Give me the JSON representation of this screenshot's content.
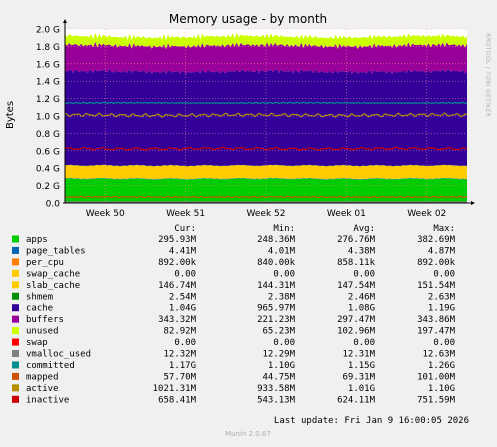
{
  "chart_data": {
    "type": "area",
    "title": "Memory usage - by month",
    "ylabel": "Bytes",
    "watermark": "RRDTOOL / TOBI OETIKER",
    "ylim": [
      0,
      2000000000
    ],
    "y_ticks": [
      {
        "value": 0,
        "label": "0.0"
      },
      {
        "value": 200000000,
        "label": "0.2 G"
      },
      {
        "value": 400000000,
        "label": "0.4 G"
      },
      {
        "value": 600000000,
        "label": "0.6 G"
      },
      {
        "value": 800000000,
        "label": "0.8 G"
      },
      {
        "value": 1000000000,
        "label": "1.0 G"
      },
      {
        "value": 1200000000,
        "label": "1.2 G"
      },
      {
        "value": 1400000000,
        "label": "1.4 G"
      },
      {
        "value": 1600000000,
        "label": "1.6 G"
      },
      {
        "value": 1800000000,
        "label": "1.8 G"
      },
      {
        "value": 2000000000,
        "label": "2.0 G"
      }
    ],
    "x_ticks": [
      "Week 50",
      "Week 51",
      "Week 52",
      "Week 01",
      "Week 02"
    ],
    "columns": [
      "Cur:",
      "Min:",
      "Avg:",
      "Max:"
    ],
    "stack_order": [
      "apps",
      "page_tables",
      "per_cpu",
      "swap_cache",
      "slab_cache",
      "shmem",
      "cache",
      "buffers",
      "unused",
      "swap"
    ],
    "line_order": [
      "vmalloc_used",
      "committed",
      "mapped",
      "active",
      "inactive"
    ],
    "series": [
      {
        "name": "apps",
        "color": "#00cc00",
        "mean": 276760000,
        "amplitude": 10000000,
        "cur": "295.93M",
        "min": "248.36M",
        "avg": "276.76M",
        "max": "382.69M"
      },
      {
        "name": "page_tables",
        "color": "#0066b3",
        "mean": 4380000,
        "amplitude": 100000,
        "cur": "4.41M",
        "min": "4.01M",
        "avg": "4.38M",
        "max": "4.87M"
      },
      {
        "name": "per_cpu",
        "color": "#ff8000",
        "mean": 858110,
        "amplitude": 10000,
        "cur": "892.00k",
        "min": "840.00k",
        "avg": "858.11k",
        "max": "892.00k"
      },
      {
        "name": "swap_cache",
        "color": "#ffcc00",
        "mean": 0,
        "amplitude": 0,
        "cur": "0.00",
        "min": "0.00",
        "avg": "0.00",
        "max": "0.00"
      },
      {
        "name": "slab_cache",
        "color": "#ffcc00",
        "mean": 147540000,
        "amplitude": 2000000,
        "cur": "146.74M",
        "min": "144.31M",
        "avg": "147.54M",
        "max": "151.54M"
      },
      {
        "name": "shmem",
        "color": "#008f00",
        "mean": 2460000,
        "amplitude": 50000,
        "cur": "2.54M",
        "min": "2.38M",
        "avg": "2.46M",
        "max": "2.63M"
      },
      {
        "name": "cache",
        "color": "#330099",
        "mean": 1080000000,
        "amplitude": 30000000,
        "cur": "1.04G",
        "min": "965.97M",
        "avg": "1.08G",
        "max": "1.19G"
      },
      {
        "name": "buffers",
        "color": "#990099",
        "mean": 297470000,
        "amplitude": 30000000,
        "cur": "343.32M",
        "min": "221.23M",
        "avg": "297.47M",
        "max": "343.86M"
      },
      {
        "name": "unused",
        "color": "#ccff00",
        "mean": 102960000,
        "amplitude": 25000000,
        "cur": "82.92M",
        "min": "65.23M",
        "avg": "102.96M",
        "max": "197.47M"
      },
      {
        "name": "swap",
        "color": "#ff0000",
        "mean": 0,
        "amplitude": 0,
        "cur": "0.00",
        "min": "0.00",
        "avg": "0.00",
        "max": "0.00"
      },
      {
        "name": "vmalloc_used",
        "color": "#808080",
        "mean": 12310000,
        "amplitude": 100000,
        "cur": "12.32M",
        "min": "12.29M",
        "avg": "12.31M",
        "max": "12.63M"
      },
      {
        "name": "committed",
        "color": "#008f8f",
        "mean": 1150000000,
        "amplitude": 8000000,
        "cur": "1.17G",
        "min": "1.10G",
        "avg": "1.15G",
        "max": "1.26G"
      },
      {
        "name": "mapped",
        "color": "#cc5200",
        "mean": 69310000,
        "amplitude": 8000000,
        "cur": "57.70M",
        "min": "44.75M",
        "avg": "69.31M",
        "max": "101.00M"
      },
      {
        "name": "active",
        "color": "#b38f00",
        "mean": 1010000000,
        "amplitude": 25000000,
        "cur": "1021.31M",
        "min": "933.58M",
        "avg": "1.01G",
        "max": "1.10G"
      },
      {
        "name": "inactive",
        "color": "#cc0000",
        "mean": 624110000,
        "amplitude": 18000000,
        "cur": "658.41M",
        "min": "543.13M",
        "avg": "624.11M",
        "max": "751.59M"
      }
    ],
    "last_update": "Last update: Fri Jan  9 16:00:05 2026",
    "footer": "Munin 2.0.67"
  }
}
